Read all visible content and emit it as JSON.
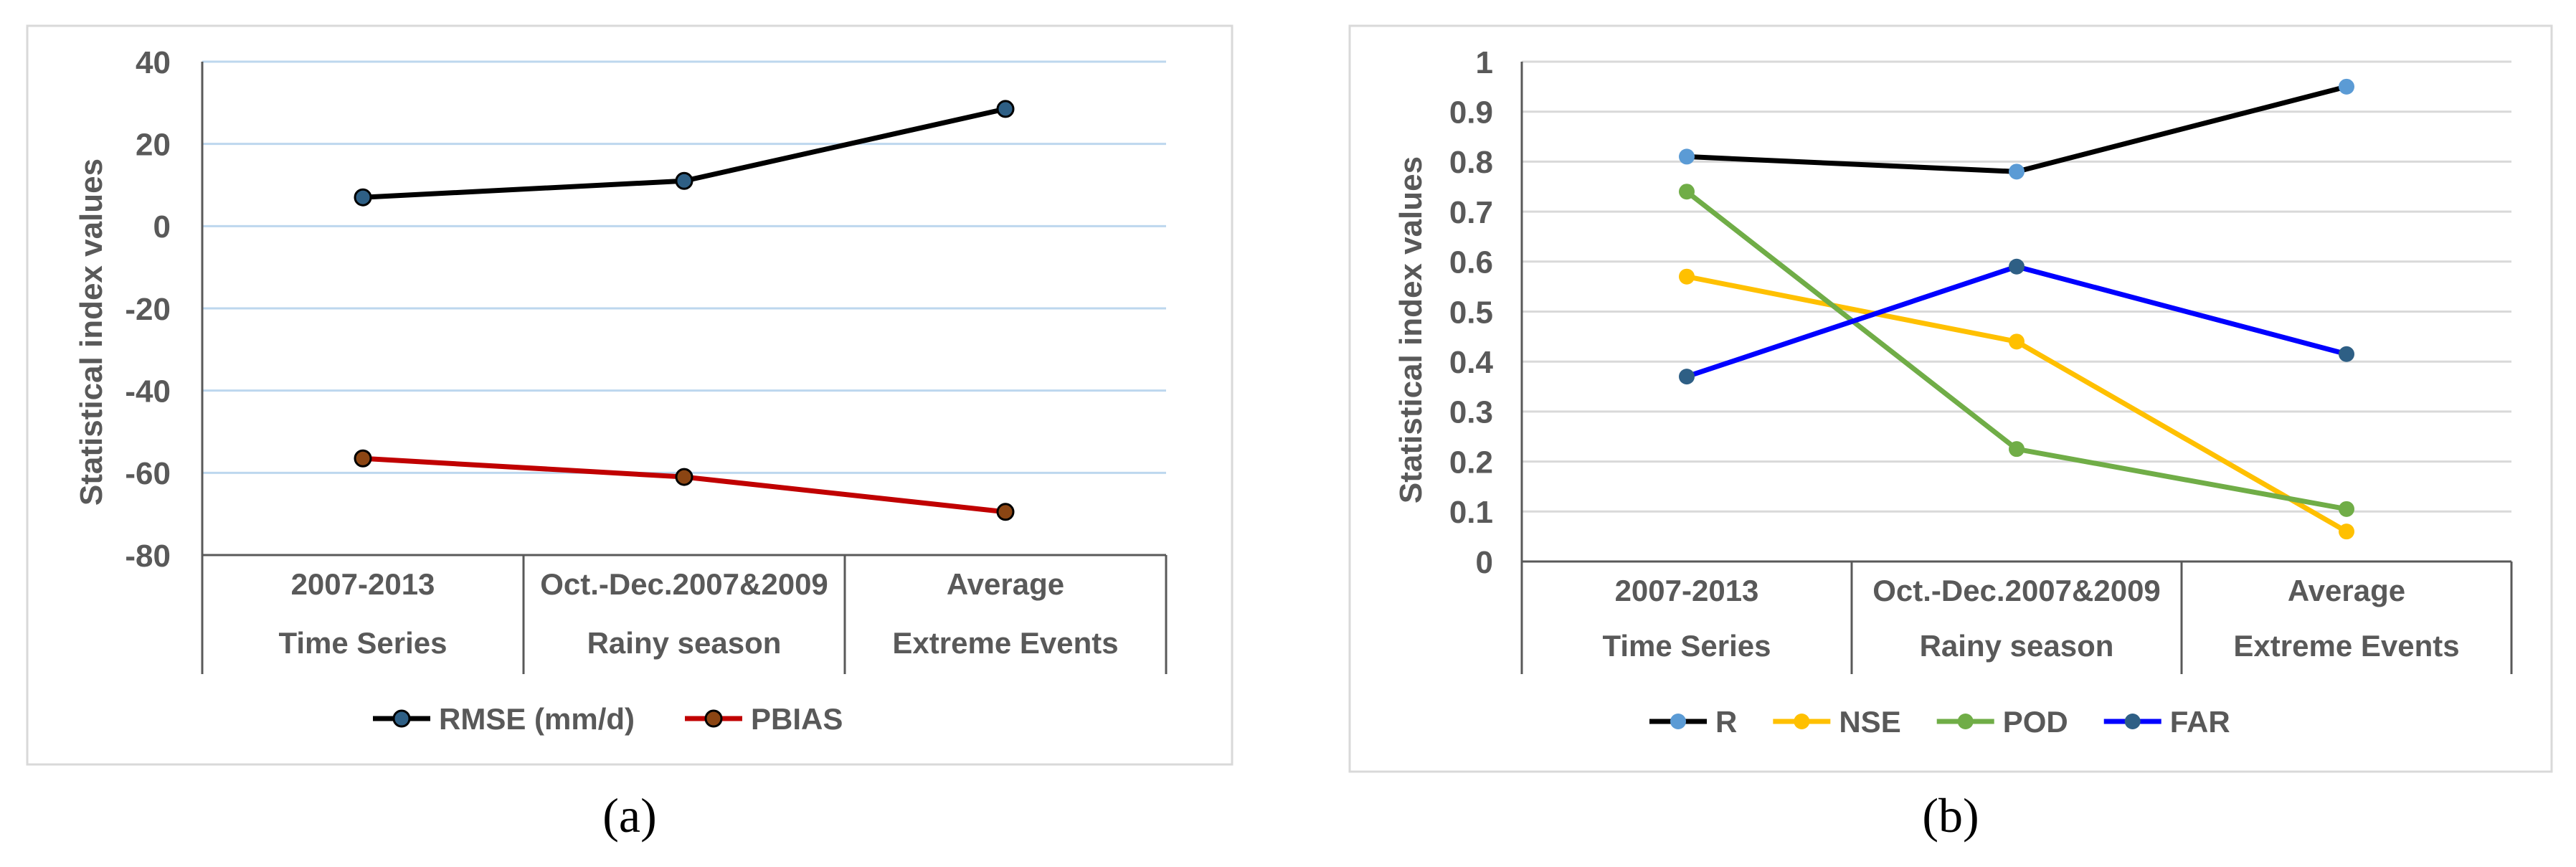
{
  "chart_data": [
    {
      "type": "line",
      "panel_label": "(a)",
      "ylabel": "Statistical index values",
      "ylim": [
        -80,
        40
      ],
      "ytick_step": 20,
      "yticks": [
        "40",
        "20",
        "0",
        "-20",
        "-40",
        "-60",
        "-80"
      ],
      "categories": [
        {
          "top": "2007-2013",
          "bottom": "Time Series"
        },
        {
          "top": "Oct.-Dec.2007&2009",
          "bottom": "Rainy season"
        },
        {
          "top": "Average",
          "bottom": "Extreme Events"
        }
      ],
      "series": [
        {
          "name": "RMSE (mm/d)",
          "values": [
            7.0,
            11.0,
            28.5
          ],
          "line_color": "#000000",
          "marker_color": "#2e5f85"
        },
        {
          "name": "PBIAS",
          "values": [
            -56.5,
            -61.0,
            -69.5
          ],
          "line_color": "#c00000",
          "marker_color": "#8b4513"
        }
      ],
      "legend_position": "bottom",
      "grid": true
    },
    {
      "type": "line",
      "panel_label": "(b)",
      "ylabel": "Statistical index values",
      "ylim": [
        0,
        1
      ],
      "ytick_step": 0.1,
      "yticks": [
        "1",
        "0.9",
        "0.8",
        "0.7",
        "0.6",
        "0.5",
        "0.4",
        "0.3",
        "0.2",
        "0.1",
        "0"
      ],
      "categories": [
        {
          "top": "2007-2013",
          "bottom": "Time Series"
        },
        {
          "top": "Oct.-Dec.2007&2009",
          "bottom": "Rainy season"
        },
        {
          "top": "Average",
          "bottom": "Extreme Events"
        }
      ],
      "series": [
        {
          "name": "R",
          "values": [
            0.81,
            0.78,
            0.95
          ],
          "line_color": "#000000",
          "marker_color": "#5b9bd5"
        },
        {
          "name": "NSE",
          "values": [
            0.57,
            0.44,
            0.06
          ],
          "line_color": "#ffc000",
          "marker_color": "#ffc000"
        },
        {
          "name": "POD",
          "values": [
            0.74,
            0.225,
            0.105
          ],
          "line_color": "#70ad47",
          "marker_color": "#70ad47"
        },
        {
          "name": "FAR",
          "values": [
            0.37,
            0.59,
            0.415
          ],
          "line_color": "#0000ff",
          "marker_color": "#2e5f85"
        }
      ],
      "legend_position": "bottom",
      "grid": true
    }
  ]
}
